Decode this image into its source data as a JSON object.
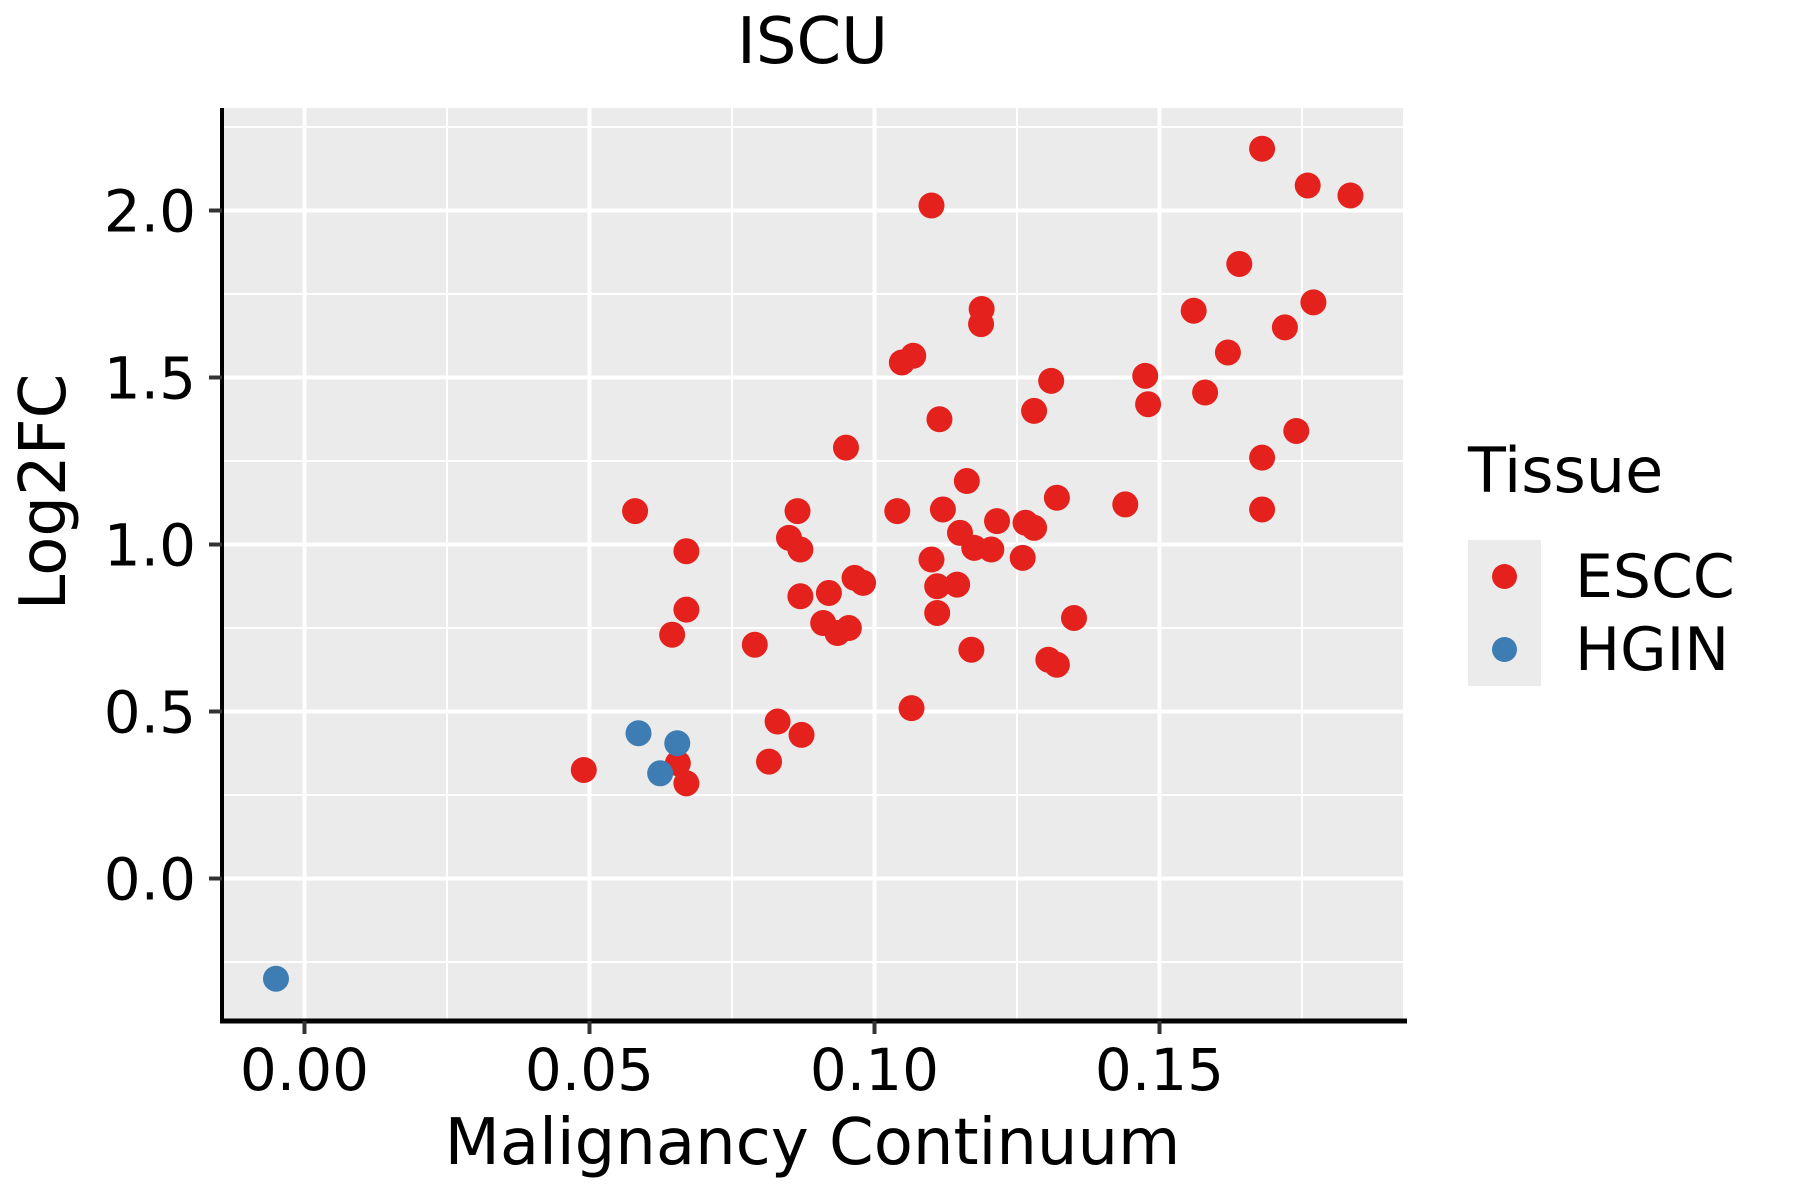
{
  "title": "ISCU",
  "axes": {
    "x": {
      "label": "Malignancy Continuum",
      "range": [
        -0.01447,
        0.19272
      ],
      "ticks": [
        0.0,
        0.05,
        0.1,
        0.15
      ],
      "tick_labels": [
        "0.00",
        "0.05",
        "0.10",
        "0.15"
      ],
      "minor_ticks": [
        0.025,
        0.075,
        0.125,
        0.175
      ]
    },
    "y": {
      "label": "Log2FC",
      "range": [
        -0.4266,
        2.3069
      ],
      "ticks": [
        0.0,
        0.5,
        1.0,
        1.5,
        2.0
      ],
      "tick_labels": [
        "0.0",
        "0.5",
        "1.0",
        "1.5",
        "2.0"
      ],
      "minor_ticks": [
        -0.25,
        0.25,
        0.75,
        1.25,
        1.75,
        2.25
      ]
    }
  },
  "legend": {
    "title": "Tissue",
    "entries": [
      {
        "label": "ESCC",
        "color": "#E4211C"
      },
      {
        "label": "HGIN",
        "color": "#3E7DB3"
      }
    ]
  },
  "style": {
    "panel_bg": "#EBEBEB",
    "grid_color": "#FFFFFF",
    "axis_line_color": "#000000",
    "tick_color": "#333333",
    "point_radius": 13
  },
  "chart_data": {
    "type": "scatter",
    "title": "ISCU",
    "xlabel": "Malignancy Continuum",
    "ylabel": "Log2FC",
    "xlim": [
      -0.0145,
      0.1927
    ],
    "ylim": [
      -0.427,
      2.307
    ],
    "grid": true,
    "legend_position": "right",
    "series": [
      {
        "name": "ESCC",
        "color": "#E4211C",
        "points": [
          [
            0.049,
            0.325
          ],
          [
            0.058,
            1.1
          ],
          [
            0.0645,
            0.73
          ],
          [
            0.067,
            0.98
          ],
          [
            0.067,
            0.805
          ],
          [
            0.0655,
            0.345
          ],
          [
            0.067,
            0.285
          ],
          [
            0.079,
            0.7
          ],
          [
            0.0865,
            1.1
          ],
          [
            0.085,
            1.02
          ],
          [
            0.087,
            0.985
          ],
          [
            0.087,
            0.845
          ],
          [
            0.092,
            0.855
          ],
          [
            0.0965,
            0.9
          ],
          [
            0.098,
            0.885
          ],
          [
            0.091,
            0.765
          ],
          [
            0.0935,
            0.735
          ],
          [
            0.0955,
            0.75
          ],
          [
            0.083,
            0.47
          ],
          [
            0.0872,
            0.43
          ],
          [
            0.0815,
            0.35
          ],
          [
            0.104,
            1.1
          ],
          [
            0.112,
            1.105
          ],
          [
            0.115,
            1.035
          ],
          [
            0.1175,
            0.99
          ],
          [
            0.1205,
            0.985
          ],
          [
            0.1215,
            1.07
          ],
          [
            0.11,
            0.955
          ],
          [
            0.111,
            0.875
          ],
          [
            0.1145,
            0.88
          ],
          [
            0.111,
            0.795
          ],
          [
            0.117,
            0.685
          ],
          [
            0.1065,
            0.51
          ],
          [
            0.11,
            2.015
          ],
          [
            0.1188,
            1.705
          ],
          [
            0.1187,
            1.66
          ],
          [
            0.1048,
            1.545
          ],
          [
            0.1068,
            1.565
          ],
          [
            0.1114,
            1.375
          ],
          [
            0.095,
            1.29
          ],
          [
            0.1162,
            1.19
          ],
          [
            0.168,
            2.185
          ],
          [
            0.176,
            2.075
          ],
          [
            0.1835,
            2.045
          ],
          [
            0.164,
            1.84
          ],
          [
            0.156,
            1.7
          ],
          [
            0.172,
            1.65
          ],
          [
            0.177,
            1.725
          ],
          [
            0.162,
            1.575
          ],
          [
            0.131,
            1.49
          ],
          [
            0.1475,
            1.505
          ],
          [
            0.148,
            1.42
          ],
          [
            0.158,
            1.455
          ],
          [
            0.128,
            1.4
          ],
          [
            0.174,
            1.34
          ],
          [
            0.168,
            1.26
          ],
          [
            0.132,
            1.14
          ],
          [
            0.144,
            1.12
          ],
          [
            0.168,
            1.105
          ],
          [
            0.1265,
            1.065
          ],
          [
            0.128,
            1.05
          ],
          [
            0.126,
            0.96
          ],
          [
            0.135,
            0.78
          ],
          [
            0.1305,
            0.655
          ],
          [
            0.132,
            0.64
          ]
        ]
      },
      {
        "name": "HGIN",
        "color": "#3E7DB3",
        "points": [
          [
            -0.005,
            -0.3
          ],
          [
            0.0586,
            0.435
          ],
          [
            0.0654,
            0.405
          ],
          [
            0.0624,
            0.315
          ]
        ]
      }
    ]
  }
}
